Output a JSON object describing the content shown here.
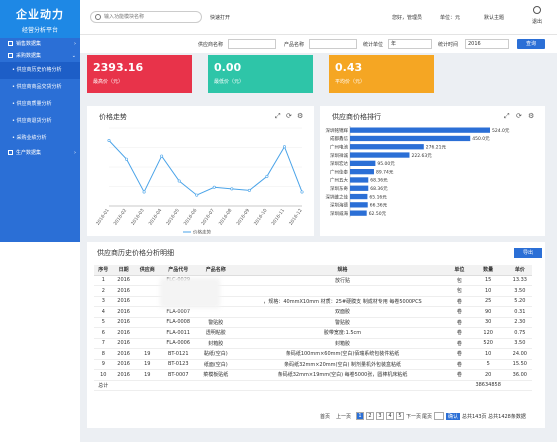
{
  "app": {
    "title_line1": "企业动力",
    "title_line2": "经营分析平台"
  },
  "sidebar": {
    "groups": [
      {
        "label": "销售数据集",
        "chevron": "›"
      },
      {
        "label": "采购数据集",
        "chevron": "⌄"
      }
    ],
    "items": [
      {
        "label": "• 供应商历史价格分析"
      },
      {
        "label": "• 供应商商品交货分析"
      },
      {
        "label": "• 供应商质量分析"
      },
      {
        "label": "• 供应商退货分析"
      },
      {
        "label": "• 采购业绩分析"
      }
    ],
    "group3": {
      "label": "生产数据集",
      "chevron": "›"
    }
  },
  "topbar": {
    "search_placeholder": "输入功能模块名称",
    "quick_open": "快速打开",
    "greeting": "您好，管理员",
    "unit": "单位：元",
    "theme": "默认主题",
    "logout": "退出"
  },
  "filter": {
    "supplier_label": "供应商名称",
    "product_label": "产品名称",
    "unit_label": "统计单位",
    "unit_value": "年",
    "time_label": "统计时间",
    "time_value": "2016",
    "query": "查询"
  },
  "stats": [
    {
      "value": "2393.16",
      "label": "最高价（元）",
      "color": "#e8334a"
    },
    {
      "value": "0.00",
      "label": "最低价（元）",
      "color": "#2ec5a8"
    },
    {
      "value": "0.43",
      "label": "平均价（元）",
      "color": "#f5a623"
    }
  ],
  "trend": {
    "title": "价格走势",
    "legend": "价格走势",
    "icons": [
      "⤢",
      "⟳",
      "⚙"
    ]
  },
  "ranking": {
    "title": "供应商价格排行",
    "icons": [
      "⤢",
      "⟳",
      "⚙"
    ]
  },
  "chart_data": [
    {
      "type": "line",
      "title": "价格走势",
      "x": [
        "2016-01",
        "2016-02",
        "2016-03",
        "2016-04",
        "2016-05",
        "2016-06",
        "2016-07",
        "2016-08",
        "2016-09",
        "2016-10",
        "2016-11",
        "2016-12"
      ],
      "series": [
        {
          "name": "价格走势",
          "values": [
            420,
            300,
            90,
            320,
            160,
            70,
            120,
            110,
            100,
            190,
            380,
            90
          ]
        }
      ],
      "ylim": [
        0,
        500
      ]
    },
    {
      "type": "bar",
      "title": "供应商价格排行",
      "categories": [
        "深圳铭锦辉",
        "成都鑫信",
        "广州电池",
        "深圳祥诚",
        "深圳宏达",
        "广州佳泰",
        "广州五大",
        "深圳东奇",
        "深圳维之佳",
        "深圳海德",
        "深圳威海"
      ],
      "values": [
        524.0,
        450.0,
        276.21,
        222.63,
        95.0,
        89.74,
        68.36,
        68.36,
        65.16,
        66.36,
        62.5
      ],
      "labels": [
        "524.0元",
        "450.0元",
        "276.21元",
        "222.63元",
        "95.00元",
        "89.74元",
        "68.36元",
        "68.36元",
        "65.16元",
        "66.36元",
        "62.50元"
      ]
    }
  ],
  "history": {
    "title": "供应商历史价格分析明细",
    "export": "导出",
    "columns": [
      "序号",
      "日期",
      "供应商",
      "产品代号",
      "产品名称",
      "规格",
      "单位",
      "数量",
      "单价"
    ],
    "rows": [
      [
        "1",
        "2016",
        "",
        "FLC-0029",
        "",
        "放行贴",
        "包",
        "15",
        "13.33"
      ],
      [
        "2",
        "2016",
        "",
        "FLC-0044",
        "",
        "",
        "包",
        "10",
        "3.50"
      ],
      [
        "3",
        "2016",
        "",
        "BT-0180",
        "",
        "，规格：40mmX10mm 材质：25#硬膜支 制成材专用 每卷5000PCS",
        "卷",
        "25",
        "5.20"
      ],
      [
        "4",
        "2016",
        "",
        "FLA-0007",
        "",
        "双面胶",
        "卷",
        "90",
        "0.31"
      ],
      [
        "5",
        "2016",
        "",
        "FLA-0008",
        "警贴胶",
        "警贴胶",
        "卷",
        "30",
        "2.30"
      ],
      [
        "6",
        "2016",
        "",
        "FLA-0011",
        "透明粘胶",
        "胶带宽度:1.5cm",
        "卷",
        "120",
        "0.75"
      ],
      [
        "7",
        "2016",
        "",
        "FLA-0006",
        "封箱胶",
        "封箱胶",
        "卷",
        "520",
        "3.50"
      ],
      [
        "8",
        "2016",
        "19",
        "BT-0121",
        "黏纸(空白)",
        "条码纸100mm×60mm(空白)佰瑞系统包装件粘纸",
        "卷",
        "10",
        "24.00"
      ],
      [
        "9",
        "2016",
        "19",
        "BT-0123",
        "纸面(空白)",
        "条码纸32mm×20mm(空白) 制剂量机外包装盒粘纸",
        "卷",
        "5",
        "15.50"
      ],
      [
        "10",
        "2016",
        "19",
        "BT-0007",
        "菜模板贴纸",
        "条码纸32mm×19mm(空白) 每卷5000张，圆棒机床粘纸",
        "卷",
        "20",
        "36.00"
      ]
    ],
    "total": {
      "label": "总计",
      "value": "38634858"
    }
  },
  "pager": {
    "first": "首页",
    "prev": "上一页",
    "pages": [
      "1",
      "2",
      "3",
      "4",
      "5"
    ],
    "next": "下一页",
    "last": "尾页",
    "goto": "确认",
    "summary": "总共143页 总共1428条数据"
  }
}
